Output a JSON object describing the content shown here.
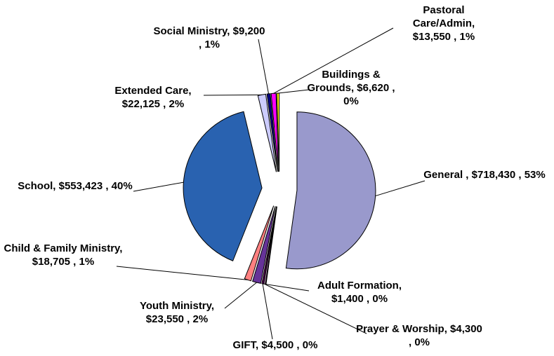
{
  "chart_data": {
    "type": "pie",
    "values": [
      718430,
      1400,
      4300,
      4500,
      23550,
      18705,
      553423,
      22125,
      9200,
      13550,
      6620
    ],
    "value_labels": [
      "General , $718,430 , 53%",
      "Adult Formation, $1,400 , 0%",
      "Prayer & Worship, $4,300 , 0%",
      "GIFT, $4,500 , 0%",
      "Youth Ministry, $23,550 , 2%",
      "Child & Family Ministry, $18,705 , 1%",
      "School, $553,423 , 40%",
      "Extended Care, $22,125 , 2%",
      "Social Ministry, $9,200 , 1%",
      "Pastoral Care/Admin, $13,550 , 1%",
      "Buildings & Grounds, $6,620 , 0%"
    ],
    "colors": [
      "#9999cc",
      "#99ccff",
      "#cc99cc",
      "#660066",
      "#663399",
      "#ff8080",
      "#2962b0",
      "#ccccff",
      "#000080",
      "#ff00ff",
      "#ffff00"
    ]
  }
}
